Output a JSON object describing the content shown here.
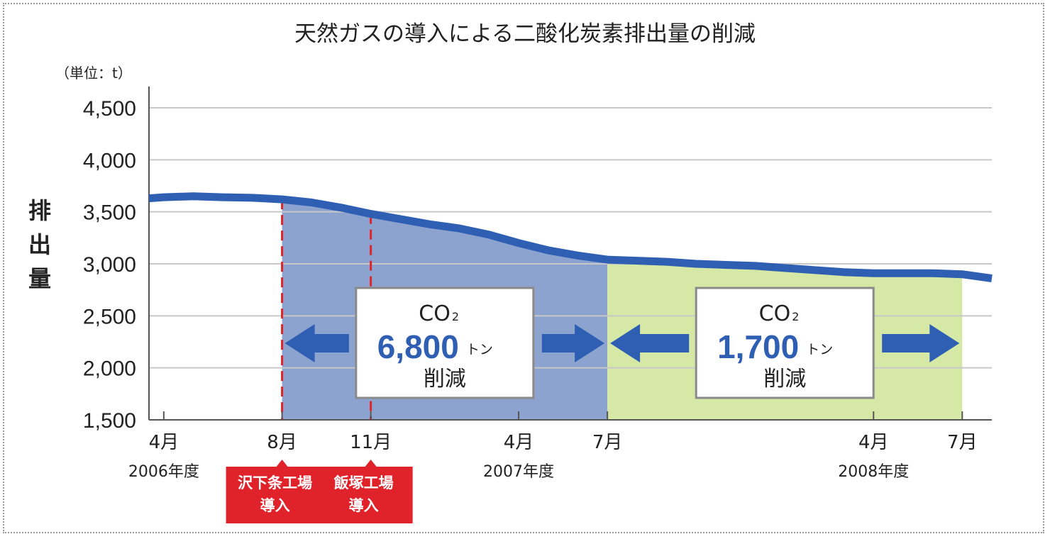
{
  "chart_data": {
    "type": "line",
    "title": "天然ガスの導入による二酸化炭素排出量の削減",
    "unit_label": "（単位：t）",
    "ylabel": "排出量",
    "ylim": [
      1500,
      4500
    ],
    "yticks": [
      "1,500",
      "2,000",
      "2,500",
      "3,000",
      "3,500",
      "4,000",
      "4,500"
    ],
    "grid": true,
    "x_start": 0,
    "x_end": 28,
    "xticks": [
      {
        "x": 0,
        "label": "4月"
      },
      {
        "x": 4,
        "label": "8月"
      },
      {
        "x": 7,
        "label": "11月"
      },
      {
        "x": 12,
        "label": "4月"
      },
      {
        "x": 15,
        "label": "7月"
      },
      {
        "x": 24,
        "label": "4月"
      },
      {
        "x": 27,
        "label": "7月"
      }
    ],
    "fiscal_years": [
      {
        "x": 0,
        "label": "2006年度"
      },
      {
        "x": 12,
        "label": "2007年度"
      },
      {
        "x": 24,
        "label": "2008年度"
      }
    ],
    "series": [
      {
        "x": [
          -0.5,
          0,
          1,
          2,
          3,
          4,
          5,
          6,
          7,
          8,
          9,
          10,
          11,
          12,
          13,
          14,
          15,
          16,
          17,
          18,
          19,
          20,
          21,
          22,
          23,
          24,
          25,
          26,
          27,
          28
        ],
        "values": [
          3630,
          3640,
          3650,
          3640,
          3635,
          3620,
          3590,
          3540,
          3480,
          3430,
          3380,
          3340,
          3280,
          3200,
          3130,
          3080,
          3040,
          3030,
          3020,
          3000,
          2990,
          2980,
          2960,
          2940,
          2920,
          2910,
          2910,
          2910,
          2900,
          2860
        ]
      }
    ],
    "events": [
      {
        "x": 4,
        "label_lines": [
          "沢下条工場",
          "導入"
        ]
      },
      {
        "x": 7,
        "label_lines": [
          "飯塚工場",
          "導入"
        ]
      }
    ],
    "periods": [
      {
        "x_start": 4,
        "x_end": 15,
        "color": "#8ca2cf",
        "co2": "CO",
        "sub": "2",
        "amount": "6,800",
        "unit": "トン",
        "note": "削減"
      },
      {
        "x_start": 15,
        "x_end": 27,
        "color": "#d6e8a6",
        "co2": "CO",
        "sub": "2",
        "amount": "1,700",
        "unit": "トン",
        "note": "削減"
      }
    ],
    "colors": {
      "line": "#2f5fb3",
      "event_line": "#e0232b",
      "event_box": "#e0232b",
      "arrow": "#2f5fb3"
    }
  }
}
